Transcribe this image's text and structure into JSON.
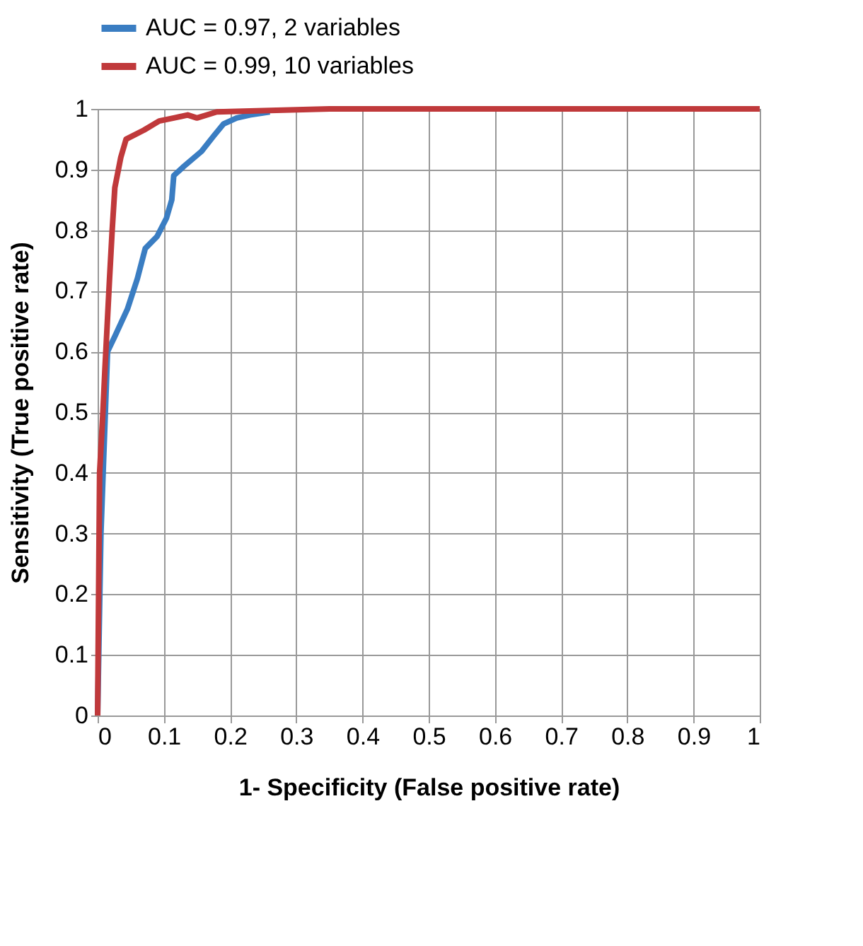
{
  "chart_data": {
    "type": "line",
    "xlabel": "1- Specificity (False positive rate)",
    "ylabel": "Sensitivity (True positive rate)",
    "xlim": [
      0,
      1
    ],
    "ylim": [
      0,
      1
    ],
    "xticks": [
      0,
      0.1,
      0.2,
      0.3,
      0.4,
      0.5,
      0.6,
      0.7,
      0.8,
      0.9,
      1
    ],
    "yticks": [
      0,
      0.1,
      0.2,
      0.3,
      0.4,
      0.5,
      0.6,
      0.7,
      0.8,
      0.9,
      1
    ],
    "grid": true,
    "legend": "top",
    "line_style": "solid",
    "marker": "none",
    "series": [
      {
        "name": "AUC = 0.97, 2 variables",
        "color": "#3a7dc2",
        "x": [
          0,
          0.005,
          0.015,
          0.026,
          0.045,
          0.06,
          0.072,
          0.09,
          0.104,
          0.112,
          0.115,
          0.13,
          0.157,
          0.175,
          0.19,
          0.21,
          0.23,
          0.26
        ],
        "values": [
          0,
          0.3,
          0.6,
          0.625,
          0.67,
          0.72,
          0.77,
          0.79,
          0.82,
          0.85,
          0.89,
          0.905,
          0.93,
          0.955,
          0.975,
          0.985,
          0.99,
          0.995
        ]
      },
      {
        "name": "AUC = 0.99, 10 variables",
        "color": "#c0393b",
        "x": [
          0,
          0.003,
          0.008,
          0.011,
          0.018,
          0.022,
          0.026,
          0.035,
          0.043,
          0.07,
          0.093,
          0.115,
          0.136,
          0.15,
          0.18,
          0.25,
          0.35,
          0.5,
          1
        ],
        "values": [
          0,
          0.4,
          0.5,
          0.57,
          0.72,
          0.8,
          0.87,
          0.92,
          0.95,
          0.965,
          0.98,
          0.985,
          0.99,
          0.985,
          0.995,
          0.997,
          1,
          1,
          1
        ]
      }
    ]
  }
}
